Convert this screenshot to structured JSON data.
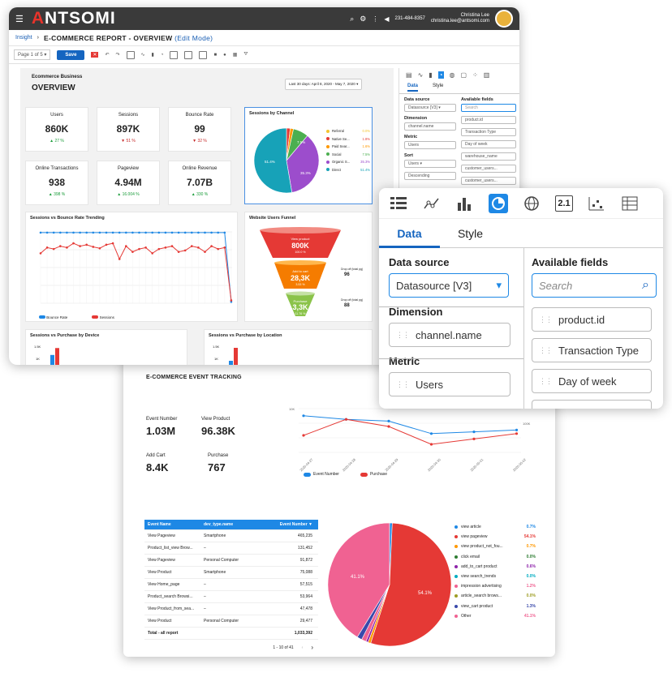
{
  "app": {
    "logo": "ANTSOMI",
    "phone": "231-484-8357",
    "user_name": "Christina Lee",
    "user_email": "christina.lee@antsomi.com"
  },
  "breadcrumb": {
    "root": "Insight",
    "title": "E-COMMERCE REPORT - OVERVIEW",
    "mode": "(Edit Mode)"
  },
  "toolbar": {
    "page": "Page 1 of 5",
    "save": "Save"
  },
  "dashboard": {
    "section": "Ecommerce Business",
    "title": "OVERVIEW",
    "date_range": "Last 30 days: April 8, 2020 - May 7, 2020"
  },
  "kpis": [
    {
      "label": "Users",
      "value": "860K",
      "delta": "27 %",
      "dir": "up"
    },
    {
      "label": "Sessions",
      "value": "897K",
      "delta": "51 %",
      "dir": "down"
    },
    {
      "label": "Bounce Rate",
      "value": "99",
      "delta": "32 %",
      "dir": "down"
    },
    {
      "label": "Online Transactions",
      "value": "938",
      "delta": "398 %",
      "dir": "up"
    },
    {
      "label": "Pageview",
      "value": "4.94M",
      "delta": "16.004 %",
      "dir": "up"
    },
    {
      "label": "Online Revenue",
      "value": "7.07B",
      "delta": "330 %",
      "dir": "up"
    }
  ],
  "sessions_by_channel": {
    "title": "Sessions by Channel",
    "slice_labels": [
      "51.4%",
      "35.3%",
      "7.5%"
    ],
    "legend": [
      {
        "name": "Referral",
        "pct": "0.0%",
        "color": "#f4c430"
      },
      {
        "name": "Native Se...",
        "pct": "1.8%",
        "color": "#e53935"
      },
      {
        "name": "Paid Sear...",
        "pct": "1.6%",
        "color": "#ff9800"
      },
      {
        "name": "Social",
        "pct": "7.5%",
        "color": "#4caf50"
      },
      {
        "name": "Organic S...",
        "pct": "35.3%",
        "color": "#9c4dcc"
      },
      {
        "name": "Direct",
        "pct": "51.4%",
        "color": "#17a2b8"
      }
    ]
  },
  "trend": {
    "title": "Sessions vs Bounce Rate Trending",
    "legend": [
      "Bounce Rate",
      "Sessions"
    ]
  },
  "funnel": {
    "title": "Website Users Funnel",
    "stages": [
      {
        "label": "View product",
        "value": "800K",
        "sub": "100.0 %"
      },
      {
        "label": "Add to cart",
        "value": "28,3K",
        "sub": "3.53 %"
      },
      {
        "label": "Purchase",
        "value": "3,3K",
        "sub": "11.76 %"
      }
    ],
    "drops": [
      {
        "label": "Drop off (total pg)",
        "value": "96"
      },
      {
        "label": "Drop off (total pg)",
        "value": "88"
      }
    ]
  },
  "bottom_panels": {
    "device": "Sessions vs Purchase by Device",
    "location": "Sessions vs Purchase by Location",
    "axis": [
      "1.5K",
      "1K"
    ]
  },
  "side_panel": {
    "tabs": [
      "Data",
      "Style"
    ],
    "data_source_label": "Data source",
    "data_source": "Datasource [V3]",
    "dimension_label": "Dimension",
    "dimension": "channel.name",
    "metric_label": "Metric",
    "metric": "Users",
    "sort_label": "Sort",
    "sort_field": "Users",
    "sort_order": "Descending",
    "available_label": "Available fields",
    "search": "Search",
    "fields": [
      "product.id",
      "Transaction Type",
      "Day of week",
      "warehouse_name",
      "customer_users...",
      "customer_users..."
    ]
  },
  "popup": {
    "tabs": [
      "Data",
      "Style"
    ],
    "data_source_label": "Data source",
    "data_source": "Datasource [V3]",
    "dimension_label": "Dimension",
    "dimension": "channel.name",
    "metric_label": "Metric",
    "metric": "Users",
    "available_label": "Available fields",
    "search": "Search",
    "fields": [
      "product.id",
      "Transaction Type",
      "Day of week"
    ],
    "icon_21": "2.1"
  },
  "event_tracking": {
    "title": "E-COMMERCE EVENT TRACKING",
    "kpis": [
      {
        "label": "Event Number",
        "value": "1.03M"
      },
      {
        "label": "View Product",
        "value": "96.38K"
      },
      {
        "label": "Add Cart",
        "value": "8.4K"
      },
      {
        "label": "Purchase",
        "value": "767"
      }
    ],
    "line_legend": [
      "Event Number",
      "Purchase"
    ],
    "y_left": "10K",
    "y_right": "100K",
    "dates": [
      "2020-04-27",
      "2020-04-28",
      "2020-04-29",
      "2020-04-30",
      "2020-05-01",
      "2020-05-02"
    ]
  },
  "table": {
    "headers": [
      "Event Name",
      "dev_type.name",
      "Event Number ▼"
    ],
    "rows": [
      [
        "View Pageview",
        "Smartphone",
        "465,235"
      ],
      [
        "Product_list_view Brow...",
        "–",
        "131,452"
      ],
      [
        "View Pageview",
        "Personal Computer",
        "91,872"
      ],
      [
        "View Product",
        "Smartphone",
        "75,088"
      ],
      [
        "View Home_page",
        "–",
        "57,515"
      ],
      [
        "Product_search Browsi...",
        "–",
        "53,964"
      ],
      [
        "View Product_from_sea...",
        "–",
        "47,478"
      ],
      [
        "View Product",
        "Personal Computer",
        "29,477"
      ]
    ],
    "total": [
      "Total - all report",
      "",
      "1,033,392"
    ],
    "pager": "1 - 10 of 41"
  },
  "event_pie": {
    "slice_labels": [
      "41.1%",
      "54.1%"
    ],
    "legend": [
      {
        "name": "view article",
        "pct": "0.7%",
        "color": "#1e88e5"
      },
      {
        "name": "view pageview",
        "pct": "54.1%",
        "color": "#e53935"
      },
      {
        "name": "view product_not_fou...",
        "pct": "0.7%",
        "color": "#ff9800"
      },
      {
        "name": "click email",
        "pct": "0.0%",
        "color": "#2e7d32"
      },
      {
        "name": "add_to_cart product",
        "pct": "0.6%",
        "color": "#8e24aa"
      },
      {
        "name": "view search_trends",
        "pct": "0.0%",
        "color": "#00acc1"
      },
      {
        "name": "impression advertising",
        "pct": "1.2%",
        "color": "#f06292"
      },
      {
        "name": "article_search brows...",
        "pct": "0.0%",
        "color": "#9e9d24"
      },
      {
        "name": "view_cart product",
        "pct": "1.3%",
        "color": "#3949ab"
      },
      {
        "name": "Other",
        "pct": "41.1%",
        "color": "#f06292"
      }
    ]
  },
  "chart_data": [
    {
      "type": "pie",
      "title": "Sessions by Channel",
      "categories": [
        "Referral",
        "Native Se...",
        "Paid Sear...",
        "Social",
        "Organic S...",
        "Direct"
      ],
      "values": [
        0.0,
        1.8,
        1.6,
        7.5,
        35.3,
        51.4
      ]
    },
    {
      "type": "line",
      "title": "Sessions vs Bounce Rate Trending",
      "x": [
        1,
        2,
        3,
        4,
        5,
        6,
        7,
        8,
        9,
        10,
        11,
        12,
        13,
        14,
        15,
        16,
        17,
        18,
        19,
        20,
        21,
        22,
        23,
        24,
        25,
        26,
        27,
        28,
        29,
        30
      ],
      "series": [
        {
          "name": "Bounce Rate",
          "values": [
            99,
            99,
            99,
            99,
            99,
            99,
            99,
            99,
            99,
            99,
            99,
            99,
            99,
            99,
            99,
            99,
            99,
            99,
            99,
            99,
            99,
            99,
            99,
            99,
            99,
            99,
            99,
            99,
            99,
            2
          ]
        },
        {
          "name": "Sessions",
          "values": [
            70,
            78,
            76,
            80,
            78,
            84,
            80,
            82,
            79,
            77,
            82,
            84,
            62,
            80,
            72,
            76,
            78,
            70,
            76,
            78,
            80,
            72,
            74,
            80,
            78,
            72,
            80,
            76,
            78,
            4
          ]
        }
      ],
      "ylim": [
        0,
        100
      ]
    },
    {
      "type": "line",
      "title": "",
      "x": [
        "2020-04-27",
        "2020-04-28",
        "2020-04-29",
        "2020-04-30",
        "2020-05-01",
        "2020-05-02"
      ],
      "series": [
        {
          "name": "Event Number",
          "values": [
            192,
            188,
            186,
            172,
            174,
            176
          ]
        },
        {
          "name": "Purchase",
          "values": [
            170,
            188,
            180,
            160,
            166,
            172
          ]
        }
      ]
    },
    {
      "type": "pie",
      "title": "",
      "categories": [
        "view article",
        "view pageview",
        "view product_not_fou...",
        "click email",
        "add_to_cart product",
        "view search_trends",
        "impression advertising",
        "article_search brows...",
        "view_cart product",
        "Other"
      ],
      "values": [
        0.7,
        54.1,
        0.7,
        0.0,
        0.6,
        0.0,
        1.2,
        0.0,
        1.3,
        41.1
      ]
    },
    {
      "type": "bar",
      "title": "Sessions vs Purchase by Device",
      "categories": [
        "1",
        "2"
      ],
      "series": [
        {
          "name": "",
          "values": [
            900,
            1300
          ]
        }
      ]
    }
  ]
}
